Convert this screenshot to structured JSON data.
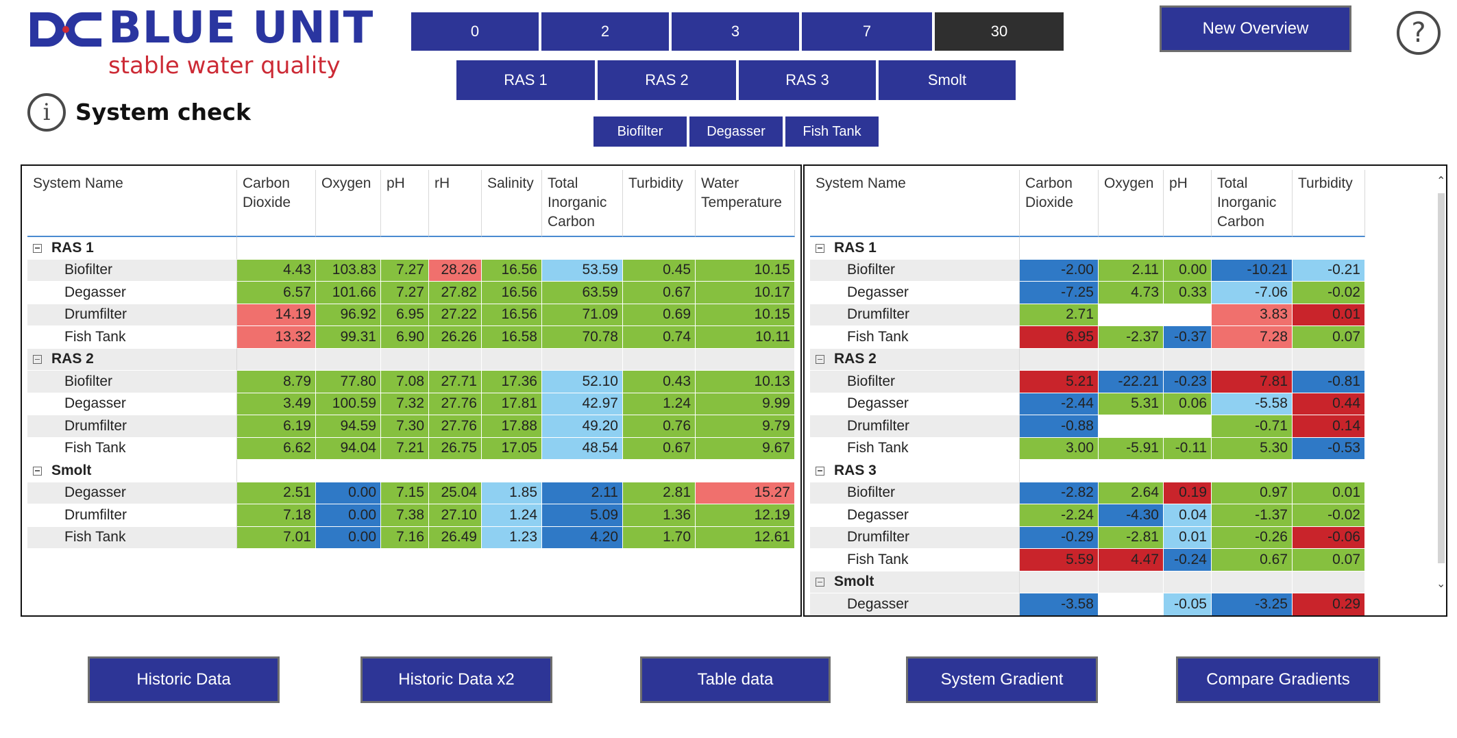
{
  "brand": {
    "name": "BLUE UNIT",
    "tagline": "stable water quality",
    "primary": "#2a35a0",
    "accent": "#cc2a35"
  },
  "page_title": "System check",
  "day_buttons": [
    "0",
    "2",
    "3",
    "7",
    "30"
  ],
  "selected_day": "30",
  "system_buttons": [
    "RAS 1",
    "RAS 2",
    "RAS 3",
    "Smolt"
  ],
  "unit_buttons": [
    "Biofilter",
    "Degasser",
    "Fish Tank"
  ],
  "new_overview": "New Overview",
  "help_symbol": "?",
  "info_symbol": "i",
  "bottom_buttons": [
    "Historic Data",
    "Historic Data x2",
    "Table data",
    "System Gradient",
    "Compare Gradients"
  ],
  "colors": {
    "green": "#86c03f",
    "red": "#f0706d",
    "dark_red": "#c9242b",
    "light_blue": "#8fd0f2",
    "blue": "#2f79c6",
    "button": "#2d3596",
    "selected_button": "#2f2f2f"
  },
  "left_table": {
    "columns": [
      "System Name",
      "Carbon Dioxide",
      "Oxygen",
      "pH",
      "rH",
      "Salinity",
      "Total Inorganic Carbon",
      "Turbidity",
      "Water Temperature"
    ],
    "groups": [
      {
        "name": "RAS 1",
        "rows": [
          {
            "name": "Biofilter",
            "cells": [
              [
                "4.43",
                "g"
              ],
              [
                "103.83",
                "g"
              ],
              [
                "7.27",
                "g"
              ],
              [
                "28.26",
                "r"
              ],
              [
                "16.56",
                "g"
              ],
              [
                "53.59",
                "lb"
              ],
              [
                "0.45",
                "g"
              ],
              [
                "10.15",
                "g"
              ]
            ]
          },
          {
            "name": "Degasser",
            "cells": [
              [
                "6.57",
                "g"
              ],
              [
                "101.66",
                "g"
              ],
              [
                "7.27",
                "g"
              ],
              [
                "27.82",
                "g"
              ],
              [
                "16.56",
                "g"
              ],
              [
                "63.59",
                "g"
              ],
              [
                "0.67",
                "g"
              ],
              [
                "10.17",
                "g"
              ]
            ]
          },
          {
            "name": "Drumfilter",
            "cells": [
              [
                "14.19",
                "r"
              ],
              [
                "96.92",
                "g"
              ],
              [
                "6.95",
                "g"
              ],
              [
                "27.22",
                "g"
              ],
              [
                "16.56",
                "g"
              ],
              [
                "71.09",
                "g"
              ],
              [
                "0.69",
                "g"
              ],
              [
                "10.15",
                "g"
              ]
            ]
          },
          {
            "name": "Fish Tank",
            "cells": [
              [
                "13.32",
                "r"
              ],
              [
                "99.31",
                "g"
              ],
              [
                "6.90",
                "g"
              ],
              [
                "26.26",
                "g"
              ],
              [
                "16.58",
                "g"
              ],
              [
                "70.78",
                "g"
              ],
              [
                "0.74",
                "g"
              ],
              [
                "10.11",
                "g"
              ]
            ]
          }
        ]
      },
      {
        "name": "RAS 2",
        "rows": [
          {
            "name": "Biofilter",
            "cells": [
              [
                "8.79",
                "g"
              ],
              [
                "77.80",
                "g"
              ],
              [
                "7.08",
                "g"
              ],
              [
                "27.71",
                "g"
              ],
              [
                "17.36",
                "g"
              ],
              [
                "52.10",
                "lb"
              ],
              [
                "0.43",
                "g"
              ],
              [
                "10.13",
                "g"
              ]
            ]
          },
          {
            "name": "Degasser",
            "cells": [
              [
                "3.49",
                "g"
              ],
              [
                "100.59",
                "g"
              ],
              [
                "7.32",
                "g"
              ],
              [
                "27.76",
                "g"
              ],
              [
                "17.81",
                "g"
              ],
              [
                "42.97",
                "lb"
              ],
              [
                "1.24",
                "g"
              ],
              [
                "9.99",
                "g"
              ]
            ]
          },
          {
            "name": "Drumfilter",
            "cells": [
              [
                "6.19",
                "g"
              ],
              [
                "94.59",
                "g"
              ],
              [
                "7.30",
                "g"
              ],
              [
                "27.76",
                "g"
              ],
              [
                "17.88",
                "g"
              ],
              [
                "49.20",
                "lb"
              ],
              [
                "0.76",
                "g"
              ],
              [
                "9.79",
                "g"
              ]
            ]
          },
          {
            "name": "Fish Tank",
            "cells": [
              [
                "6.62",
                "g"
              ],
              [
                "94.04",
                "g"
              ],
              [
                "7.21",
                "g"
              ],
              [
                "26.75",
                "g"
              ],
              [
                "17.05",
                "g"
              ],
              [
                "48.54",
                "lb"
              ],
              [
                "0.67",
                "g"
              ],
              [
                "9.67",
                "g"
              ]
            ]
          }
        ]
      },
      {
        "name": "Smolt",
        "rows": [
          {
            "name": "Degasser",
            "cells": [
              [
                "2.51",
                "g"
              ],
              [
                "0.00",
                "b"
              ],
              [
                "7.15",
                "g"
              ],
              [
                "25.04",
                "g"
              ],
              [
                "1.85",
                "lb"
              ],
              [
                "2.11",
                "b"
              ],
              [
                "2.81",
                "g"
              ],
              [
                "15.27",
                "r"
              ]
            ]
          },
          {
            "name": "Drumfilter",
            "cells": [
              [
                "7.18",
                "g"
              ],
              [
                "0.00",
                "b"
              ],
              [
                "7.38",
                "g"
              ],
              [
                "27.10",
                "g"
              ],
              [
                "1.24",
                "lb"
              ],
              [
                "5.09",
                "b"
              ],
              [
                "1.36",
                "g"
              ],
              [
                "12.19",
                "g"
              ]
            ]
          },
          {
            "name": "Fish Tank",
            "cells": [
              [
                "7.01",
                "g"
              ],
              [
                "0.00",
                "b"
              ],
              [
                "7.16",
                "g"
              ],
              [
                "26.49",
                "g"
              ],
              [
                "1.23",
                "lb"
              ],
              [
                "4.20",
                "b"
              ],
              [
                "1.70",
                "g"
              ],
              [
                "12.61",
                "g"
              ]
            ]
          }
        ]
      }
    ]
  },
  "right_table": {
    "columns": [
      "System Name",
      "Carbon Dioxide",
      "Oxygen",
      "pH",
      "Total Inorganic Carbon",
      "Turbidity"
    ],
    "groups": [
      {
        "name": "RAS 1",
        "rows": [
          {
            "name": "Biofilter",
            "cells": [
              [
                "-2.00",
                "b"
              ],
              [
                "2.11",
                "g"
              ],
              [
                "0.00",
                "g"
              ],
              [
                "-10.21",
                "b"
              ],
              [
                "-0.21",
                "lb"
              ]
            ]
          },
          {
            "name": "Degasser",
            "cells": [
              [
                "-7.25",
                "b"
              ],
              [
                "4.73",
                "g"
              ],
              [
                "0.33",
                "g"
              ],
              [
                "-7.06",
                "lb"
              ],
              [
                "-0.02",
                "g"
              ]
            ]
          },
          {
            "name": "Drumfilter",
            "cells": [
              [
                "2.71",
                "g"
              ],
              [
                "",
                "e"
              ],
              [
                "",
                "e"
              ],
              [
                "3.83",
                "r"
              ],
              [
                "0.01",
                "dr"
              ]
            ]
          },
          {
            "name": "Fish Tank",
            "cells": [
              [
                "6.95",
                "dr"
              ],
              [
                "-2.37",
                "g"
              ],
              [
                "-0.37",
                "b"
              ],
              [
                "7.28",
                "r"
              ],
              [
                "0.07",
                "g"
              ]
            ]
          }
        ]
      },
      {
        "name": "RAS 2",
        "rows": [
          {
            "name": "Biofilter",
            "cells": [
              [
                "5.21",
                "dr"
              ],
              [
                "-22.21",
                "b"
              ],
              [
                "-0.23",
                "b"
              ],
              [
                "7.81",
                "dr"
              ],
              [
                "-0.81",
                "b"
              ]
            ]
          },
          {
            "name": "Degasser",
            "cells": [
              [
                "-2.44",
                "b"
              ],
              [
                "5.31",
                "g"
              ],
              [
                "0.06",
                "g"
              ],
              [
                "-5.58",
                "lb"
              ],
              [
                "0.44",
                "dr"
              ]
            ]
          },
          {
            "name": "Drumfilter",
            "cells": [
              [
                "-0.88",
                "b"
              ],
              [
                "",
                "e"
              ],
              [
                "",
                "e"
              ],
              [
                "-0.71",
                "g"
              ],
              [
                "0.14",
                "dr"
              ]
            ]
          },
          {
            "name": "Fish Tank",
            "cells": [
              [
                "3.00",
                "g"
              ],
              [
                "-5.91",
                "g"
              ],
              [
                "-0.11",
                "g"
              ],
              [
                "5.30",
                "g"
              ],
              [
                "-0.53",
                "b"
              ]
            ]
          }
        ]
      },
      {
        "name": "RAS 3",
        "rows": [
          {
            "name": "Biofilter",
            "cells": [
              [
                "-2.82",
                "b"
              ],
              [
                "2.64",
                "g"
              ],
              [
                "0.19",
                "dr"
              ],
              [
                "0.97",
                "g"
              ],
              [
                "0.01",
                "g"
              ]
            ]
          },
          {
            "name": "Degasser",
            "cells": [
              [
                "-2.24",
                "g"
              ],
              [
                "-4.30",
                "b"
              ],
              [
                "0.04",
                "lb"
              ],
              [
                "-1.37",
                "g"
              ],
              [
                "-0.02",
                "g"
              ]
            ]
          },
          {
            "name": "Drumfilter",
            "cells": [
              [
                "-0.29",
                "b"
              ],
              [
                "-2.81",
                "g"
              ],
              [
                "0.01",
                "lb"
              ],
              [
                "-0.26",
                "g"
              ],
              [
                "-0.06",
                "dr"
              ]
            ]
          },
          {
            "name": "Fish Tank",
            "cells": [
              [
                "5.59",
                "dr"
              ],
              [
                "4.47",
                "dr"
              ],
              [
                "-0.24",
                "b"
              ],
              [
                "0.67",
                "g"
              ],
              [
                "0.07",
                "g"
              ]
            ]
          }
        ]
      },
      {
        "name": "Smolt",
        "rows": [
          {
            "name": "Degasser",
            "cells": [
              [
                "-3.58",
                "b"
              ],
              [
                "",
                "e"
              ],
              [
                "-0.05",
                "lb"
              ],
              [
                "-3.25",
                "b"
              ],
              [
                "0.29",
                "dr"
              ]
            ]
          }
        ]
      }
    ]
  }
}
